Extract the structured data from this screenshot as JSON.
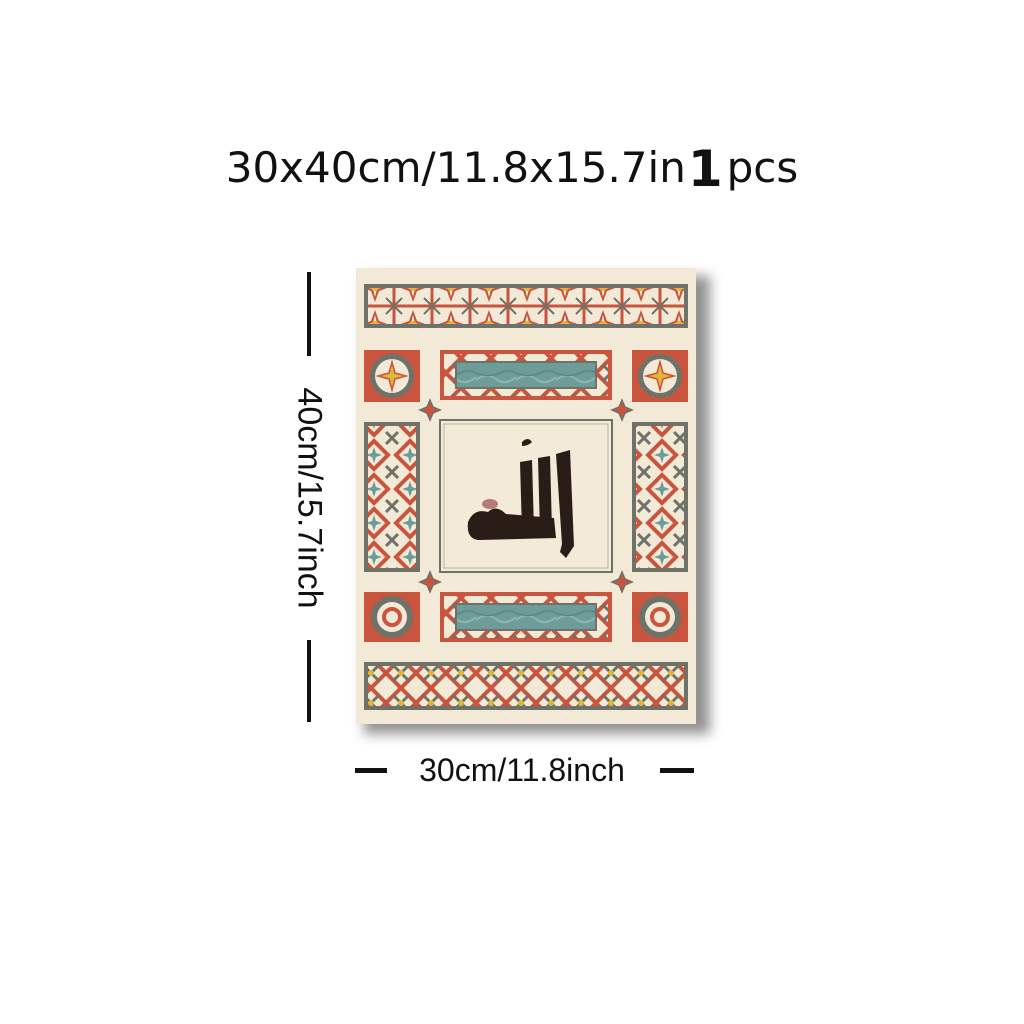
{
  "title": {
    "size": "30x40cm/11.8x15.7in",
    "quantity": "1",
    "unit": "pcs"
  },
  "dimensions": {
    "height_label": "40cm/15.7inch",
    "width_label": "30cm/11.8inch"
  },
  "colors": {
    "cream": "#f2e9d6",
    "red": "#c9553e",
    "gray": "#6e7268",
    "teal": "#6d9c9a",
    "gold": "#e0b53a",
    "ink": "#2a1d18"
  },
  "artwork": {
    "subject": "calligraphy-panel-with-geometric-border"
  }
}
